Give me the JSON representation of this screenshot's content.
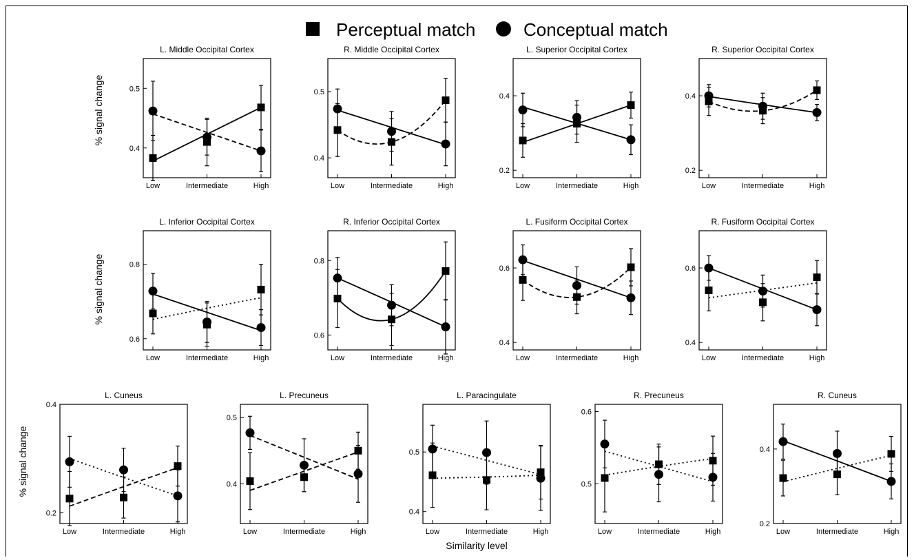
{
  "legend": {
    "perceptual": "Perceptual match",
    "conceptual": "Conceptual match",
    "perceptual_marker": "square",
    "conceptual_marker": "circle"
  },
  "ylabel": "% signal change",
  "xlabel": "Similarity level",
  "categories": [
    "Low",
    "Intermediate",
    "High"
  ],
  "colors": {
    "ink": "#000000",
    "background": "#ffffff"
  },
  "chart_data": [
    {
      "type": "line",
      "title": "L. Middle Occipital Cortex",
      "categories": [
        "Low",
        "Intermediate",
        "High"
      ],
      "ylim": [
        0.35,
        0.55
      ],
      "yticks": [
        0.4,
        0.5
      ],
      "series": [
        {
          "name": "Perceptual match",
          "values": [
            0.383,
            0.41,
            0.468
          ],
          "err": [
            0.038,
            0.04,
            0.037
          ],
          "fit": "solid",
          "fit_values": [
            0.378,
            0.423,
            0.468
          ]
        },
        {
          "name": "Conceptual match",
          "values": [
            0.462,
            0.418,
            0.395
          ],
          "err": [
            0.05,
            0.03,
            0.035
          ],
          "fit": "dashed",
          "fit_values": [
            0.457,
            0.426,
            0.395
          ]
        }
      ]
    },
    {
      "type": "line",
      "title": "R. Middle Occipital Cortex",
      "categories": [
        "Low",
        "Intermediate",
        "High"
      ],
      "ylim": [
        0.37,
        0.55
      ],
      "yticks": [
        0.4,
        0.5
      ],
      "series": [
        {
          "name": "Perceptual match",
          "values": [
            0.442,
            0.424,
            0.487
          ],
          "err": [
            0.04,
            0.035,
            0.033
          ],
          "fit": "dashed",
          "fit_values": [
            0.442,
            0.424,
            0.487
          ]
        },
        {
          "name": "Conceptual match",
          "values": [
            0.474,
            0.44,
            0.421
          ],
          "err": [
            0.03,
            0.03,
            0.033
          ],
          "fit": "solid",
          "fit_values": [
            0.472,
            0.446,
            0.42
          ]
        }
      ]
    },
    {
      "type": "line",
      "title": "L. Superior Occipital Cortex",
      "categories": [
        "Low",
        "Intermediate",
        "High"
      ],
      "ylim": [
        0.18,
        0.5
      ],
      "yticks": [
        0.2,
        0.4
      ],
      "series": [
        {
          "name": "Perceptual match",
          "values": [
            0.28,
            0.325,
            0.375
          ],
          "err": [
            0.045,
            0.05,
            0.035
          ],
          "fit": "solid",
          "fit_values": [
            0.275,
            0.325,
            0.375
          ]
        },
        {
          "name": "Conceptual match",
          "values": [
            0.362,
            0.342,
            0.282
          ],
          "err": [
            0.045,
            0.045,
            0.04
          ],
          "fit": "solid",
          "fit_values": [
            0.37,
            0.326,
            0.282
          ]
        }
      ]
    },
    {
      "type": "line",
      "title": "R. Superior Occipital Cortex",
      "categories": [
        "Low",
        "Intermediate",
        "High"
      ],
      "ylim": [
        0.18,
        0.5
      ],
      "yticks": [
        0.2,
        0.4
      ],
      "series": [
        {
          "name": "Perceptual match",
          "values": [
            0.385,
            0.36,
            0.415
          ],
          "err": [
            0.038,
            0.035,
            0.025
          ],
          "fit": "dashed",
          "fit_values": [
            0.385,
            0.36,
            0.415
          ]
        },
        {
          "name": "Conceptual match",
          "values": [
            0.4,
            0.372,
            0.355
          ],
          "err": [
            0.03,
            0.035,
            0.022
          ],
          "fit": "solid",
          "fit_values": [
            0.398,
            0.376,
            0.355
          ]
        }
      ]
    },
    {
      "type": "line",
      "title": "L. Inferior Occipital Cortex",
      "categories": [
        "Low",
        "Intermediate",
        "High"
      ],
      "ylim": [
        0.57,
        0.89
      ],
      "yticks": [
        0.6,
        0.8
      ],
      "series": [
        {
          "name": "Perceptual match",
          "values": [
            0.668,
            0.638,
            0.732
          ],
          "err": [
            0.055,
            0.058,
            0.068
          ],
          "fit": "dotted",
          "fit_values": [
            0.652,
            0.682,
            0.71
          ]
        },
        {
          "name": "Conceptual match",
          "values": [
            0.728,
            0.645,
            0.63
          ],
          "err": [
            0.048,
            0.055,
            0.048
          ],
          "fit": "solid",
          "fit_values": [
            0.72,
            0.671,
            0.622
          ]
        }
      ]
    },
    {
      "type": "line",
      "title": "R. Inferior Occipital Cortex",
      "categories": [
        "Low",
        "Intermediate",
        "High"
      ],
      "ylim": [
        0.56,
        0.88
      ],
      "yticks": [
        0.6,
        0.8
      ],
      "series": [
        {
          "name": "Perceptual match",
          "values": [
            0.698,
            0.642,
            0.772
          ],
          "err": [
            0.078,
            0.07,
            0.078
          ],
          "fit": "solid",
          "fit_values": [
            0.698,
            0.642,
            0.772
          ]
        },
        {
          "name": "Conceptual match",
          "values": [
            0.753,
            0.68,
            0.622
          ],
          "err": [
            0.055,
            0.055,
            0.073
          ],
          "fit": "solid",
          "fit_values": [
            0.753,
            0.688,
            0.622
          ]
        }
      ]
    },
    {
      "type": "line",
      "title": "L. Fusiform Occipital Cortex",
      "categories": [
        "Low",
        "Intermediate",
        "High"
      ],
      "ylim": [
        0.38,
        0.7
      ],
      "yticks": [
        0.4,
        0.6
      ],
      "series": [
        {
          "name": "Perceptual match",
          "values": [
            0.568,
            0.522,
            0.602
          ],
          "err": [
            0.055,
            0.045,
            0.05
          ],
          "fit": "dashed",
          "fit_values": [
            0.568,
            0.522,
            0.602
          ]
        },
        {
          "name": "Conceptual match",
          "values": [
            0.622,
            0.553,
            0.52
          ],
          "err": [
            0.04,
            0.05,
            0.045
          ],
          "fit": "solid",
          "fit_values": [
            0.62,
            0.57,
            0.52
          ]
        }
      ]
    },
    {
      "type": "line",
      "title": "R. Fusiform Occipital Cortex",
      "categories": [
        "Low",
        "Intermediate",
        "High"
      ],
      "ylim": [
        0.38,
        0.7
      ],
      "yticks": [
        0.4,
        0.6
      ],
      "series": [
        {
          "name": "Perceptual match",
          "values": [
            0.54,
            0.508,
            0.575
          ],
          "err": [
            0.055,
            0.05,
            0.045
          ],
          "fit": "dotted",
          "fit_values": [
            0.52,
            0.54,
            0.56
          ]
        },
        {
          "name": "Conceptual match",
          "values": [
            0.6,
            0.538,
            0.488
          ],
          "err": [
            0.033,
            0.043,
            0.043
          ],
          "fit": "solid",
          "fit_values": [
            0.6,
            0.544,
            0.488
          ]
        }
      ]
    },
    {
      "type": "line",
      "title": "L. Cuneus",
      "categories": [
        "Low",
        "Intermediate",
        "High"
      ],
      "ylim": [
        0.18,
        0.4
      ],
      "yticks": [
        0.2,
        0.4
      ],
      "series": [
        {
          "name": "Perceptual match",
          "values": [
            0.226,
            0.228,
            0.286
          ],
          "err": [
            0.05,
            0.038,
            0.037
          ],
          "fit": "dashed",
          "fit_values": [
            0.212,
            0.248,
            0.283
          ]
        },
        {
          "name": "Conceptual match",
          "values": [
            0.294,
            0.279,
            0.231
          ],
          "err": [
            0.047,
            0.04,
            0.048
          ],
          "fit": "dotted",
          "fit_values": [
            0.3,
            0.265,
            0.231
          ]
        }
      ]
    },
    {
      "type": "line",
      "title": "L. Precuneus",
      "categories": [
        "Low",
        "Intermediate",
        "High"
      ],
      "ylim": [
        0.34,
        0.52
      ],
      "yticks": [
        0.4,
        0.5
      ],
      "series": [
        {
          "name": "Perceptual match",
          "values": [
            0.404,
            0.41,
            0.45
          ],
          "err": [
            0.043,
            0.022,
            0.028
          ],
          "fit": "dashed",
          "fit_values": [
            0.39,
            0.419,
            0.448
          ]
        },
        {
          "name": "Conceptual match",
          "values": [
            0.477,
            0.428,
            0.415
          ],
          "err": [
            0.025,
            0.04,
            0.043
          ],
          "fit": "dashed",
          "fit_values": [
            0.473,
            0.44,
            0.407
          ]
        }
      ]
    },
    {
      "type": "line",
      "title": "L. Paracingulate",
      "categories": [
        "Low",
        "Intermediate",
        "High"
      ],
      "ylim": [
        0.38,
        0.58
      ],
      "yticks": [
        0.4,
        0.5
      ],
      "series": [
        {
          "name": "Perceptual match",
          "values": [
            0.461,
            0.453,
            0.466
          ],
          "err": [
            0.054,
            0.05,
            0.045
          ],
          "fit": "dotted",
          "fit_values": [
            0.456,
            0.458,
            0.461
          ]
        },
        {
          "name": "Conceptual match",
          "values": [
            0.505,
            0.499,
            0.456
          ],
          "err": [
            0.04,
            0.053,
            0.054
          ],
          "fit": "dotted",
          "fit_values": [
            0.51,
            0.486,
            0.462
          ]
        }
      ]
    },
    {
      "type": "line",
      "title": "R. Precuneus",
      "categories": [
        "Low",
        "Intermediate",
        "High"
      ],
      "ylim": [
        0.445,
        0.61
      ],
      "yticks": [
        0.5,
        0.6
      ],
      "series": [
        {
          "name": "Perceptual match",
          "values": [
            0.508,
            0.527,
            0.532
          ],
          "err": [
            0.047,
            0.028,
            0.034
          ],
          "fit": "dotted",
          "fit_values": [
            0.512,
            0.524,
            0.535
          ]
        },
        {
          "name": "Conceptual match",
          "values": [
            0.555,
            0.513,
            0.509
          ],
          "err": [
            0.033,
            0.038,
            0.033
          ],
          "fit": "dotted",
          "fit_values": [
            0.545,
            0.524,
            0.503
          ]
        }
      ]
    },
    {
      "type": "line",
      "title": "R. Cuneus",
      "categories": [
        "Low",
        "Intermediate",
        "High"
      ],
      "ylim": [
        0.2,
        0.52
      ],
      "yticks": [
        0.2,
        0.4
      ],
      "series": [
        {
          "name": "Perceptual match",
          "values": [
            0.322,
            0.332,
            0.387
          ],
          "err": [
            0.048,
            0.055,
            0.047
          ],
          "fit": "dotted",
          "fit_values": [
            0.312,
            0.348,
            0.383
          ]
        },
        {
          "name": "Conceptual match",
          "values": [
            0.42,
            0.388,
            0.313
          ],
          "err": [
            0.047,
            0.06,
            0.047
          ],
          "fit": "solid",
          "fit_values": [
            0.422,
            0.368,
            0.313
          ]
        }
      ]
    }
  ]
}
